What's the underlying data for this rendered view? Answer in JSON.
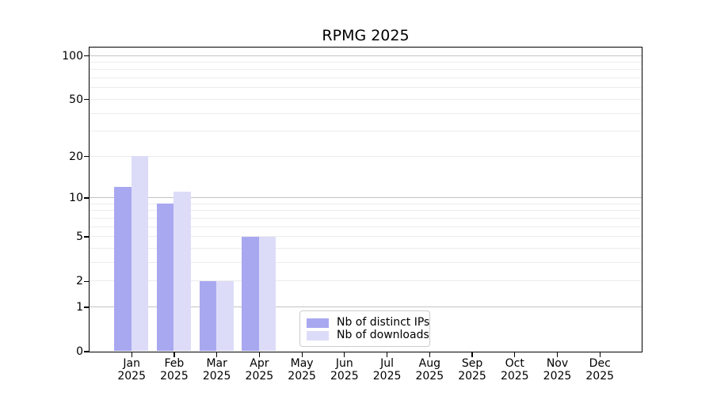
{
  "figure": {
    "background": "#ffffff"
  },
  "chart_data": {
    "type": "bar",
    "title": "RPMG 2025",
    "categories": [
      "Jan",
      "Feb",
      "Mar",
      "Apr",
      "May",
      "Jun",
      "Jul",
      "Aug",
      "Sep",
      "Oct",
      "Nov",
      "Dec"
    ],
    "x_tick_year": "2025",
    "series": [
      {
        "name": "Nb of distinct IPs",
        "color": "#a8a8f1",
        "values": [
          12,
          9,
          2,
          5,
          0,
          0,
          0,
          0,
          0,
          0,
          0,
          0
        ]
      },
      {
        "name": "Nb of downloads",
        "color": "#dcdcf9",
        "values": [
          20,
          11,
          2,
          5,
          0,
          0,
          0,
          0,
          0,
          0,
          0,
          0
        ]
      }
    ],
    "y_scale": "log1p",
    "ylim": [
      0,
      100
    ],
    "y_tick_labels": [
      "100",
      "50",
      "20",
      "10",
      "5",
      "2",
      "1",
      "0"
    ],
    "y_tick_values": [
      100,
      50,
      20,
      10,
      5,
      2,
      1,
      0
    ],
    "y_major_gridlines": [
      1,
      10,
      100
    ],
    "y_minor_gridlines": [
      2,
      3,
      4,
      5,
      6,
      7,
      8,
      9,
      20,
      30,
      40,
      50,
      60,
      70,
      80,
      90
    ],
    "grid": "horizontal-only",
    "legend_position": "bottom-center",
    "colors": {
      "major_gridline": "#c3c3c3",
      "minor_gridline": "#ececec",
      "spine": "#000000",
      "legend_border": "#cccccc",
      "text": "#000000"
    }
  }
}
